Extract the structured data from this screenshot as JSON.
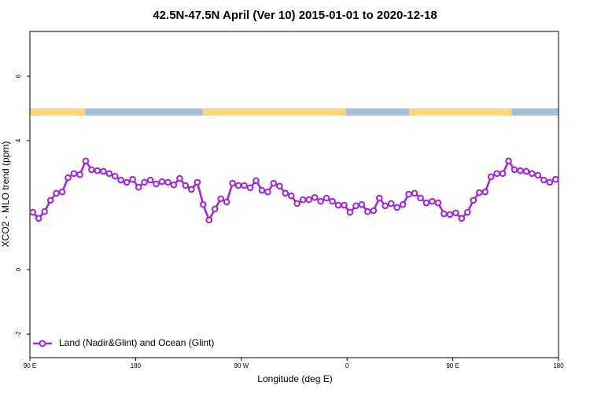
{
  "chart_data": {
    "type": "line",
    "title": "42.5N-47.5N April (Ver 10)   2015-01-01 to 2020-12-18",
    "x_label": "Longitude (deg E)",
    "y_label": "XCO2 - MLO trend (ppm)",
    "xlim": [
      90,
      540
    ],
    "ylim": [
      -2.73,
      7.39
    ],
    "xticks": [
      {
        "value": 90,
        "label": "90 E"
      },
      180,
      {
        "value": 270,
        "label": "90 W"
      },
      {
        "value": 360,
        "label": "0"
      },
      {
        "value": 450,
        "label": "90 E"
      },
      {
        "value": 540,
        "label": "180"
      }
    ],
    "yticks": [
      -2,
      0,
      4,
      6
    ],
    "legend": "bottom-left",
    "surface_band": {
      "ylim": [
        4.78,
        5.0
      ],
      "segments": [
        {
          "start": 90,
          "end": 137,
          "color": "#f9d77e"
        },
        {
          "start": 137,
          "end": 237,
          "color": "#a7bcd8"
        },
        {
          "start": 237,
          "end": 359,
          "color": "#f9d77e"
        },
        {
          "start": 359,
          "end": 413,
          "color": "#a7bcd8"
        },
        {
          "start": 413,
          "end": 500,
          "color": "#f9d77e"
        },
        {
          "start": 500,
          "end": 540,
          "color": "#a7bcd8"
        }
      ]
    },
    "x": [
      92.5,
      97.5,
      102.5,
      107.5,
      112.5,
      117.5,
      122.5,
      127.5,
      132.5,
      137.5,
      142.5,
      147.5,
      152.5,
      157.5,
      162.5,
      167.5,
      172.5,
      177.5,
      182.5,
      187.5,
      192.5,
      197.5,
      202.5,
      207.5,
      212.5,
      217.5,
      222.5,
      227.5,
      232.5,
      237.5,
      242.5,
      247.5,
      252.5,
      257.5,
      262.5,
      267.5,
      272.5,
      277.5,
      282.5,
      287.5,
      292.5,
      297.5,
      302.5,
      307.5,
      312.5,
      317.5,
      322.5,
      327.5,
      332.5,
      337.5,
      342.5,
      347.5,
      352.5,
      357.5,
      362.5,
      367.5,
      372.5,
      377.5,
      382.5,
      387.5,
      392.5,
      397.5,
      402.5,
      407.5,
      412.5,
      417.5,
      422.5,
      427.5,
      432.5,
      437.5,
      442.5,
      447.5,
      452.5,
      457.5,
      462.5,
      467.5,
      472.5,
      477.5,
      482.5,
      487.5,
      492.5,
      497.5,
      502.5,
      507.5,
      512.5,
      517.5,
      522.5,
      527.5,
      532.5,
      537.5
    ],
    "series": [
      {
        "name": "Land (Nadir&Glint) and Ocean (Glint)",
        "color": "#a020f0",
        "values": [
          1.78,
          1.59,
          1.8,
          2.15,
          2.37,
          2.41,
          2.85,
          2.98,
          2.95,
          3.37,
          3.1,
          3.07,
          3.05,
          2.98,
          2.9,
          2.78,
          2.71,
          2.8,
          2.56,
          2.71,
          2.78,
          2.66,
          2.73,
          2.71,
          2.63,
          2.83,
          2.61,
          2.49,
          2.71,
          2.02,
          1.54,
          1.88,
          2.2,
          2.1,
          2.68,
          2.61,
          2.61,
          2.54,
          2.76,
          2.46,
          2.41,
          2.68,
          2.59,
          2.37,
          2.29,
          2.05,
          2.17,
          2.17,
          2.24,
          2.12,
          2.22,
          2.12,
          2.0,
          2.0,
          1.78,
          1.98,
          2.02,
          1.8,
          1.83,
          2.22,
          1.98,
          2.05,
          1.93,
          2.02,
          2.34,
          2.37,
          2.22,
          2.07,
          2.12,
          2.07,
          1.73,
          1.71,
          1.76,
          1.59,
          1.78,
          2.15,
          2.39,
          2.41,
          2.88,
          2.98,
          2.98,
          3.37,
          3.1,
          3.07,
          3.05,
          2.98,
          2.93,
          2.78,
          2.71,
          2.8
        ]
      }
    ]
  }
}
